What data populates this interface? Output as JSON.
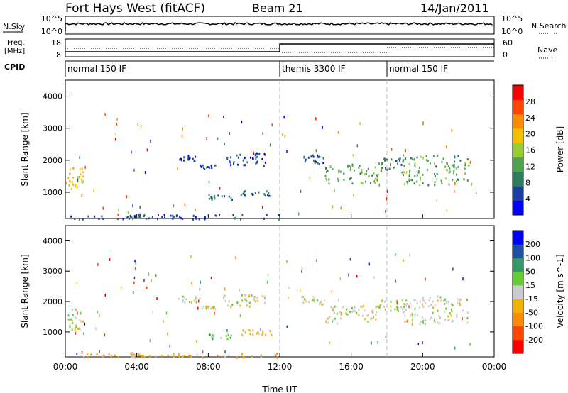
{
  "header": {
    "station": "Fort Hays West (fitACF)",
    "beam": "Beam 21",
    "date": "14/Jan/2011"
  },
  "panels_top": {
    "nsky_label": "N.Sky",
    "nsearch_label": "N.Search",
    "freq_label_line1": "Freq.",
    "freq_label_line2": "[MHz]",
    "nave_label": "Nave",
    "cpid_label": "CPID",
    "nsky_ticks": [
      "10^5",
      "10^0"
    ],
    "nsearch_ticks": [
      "10^5",
      "10^0"
    ],
    "freq_ticks": [
      "18",
      "8"
    ],
    "nave_ticks": [
      "60",
      "0"
    ]
  },
  "cpid_segments": [
    {
      "start": 0,
      "end": 12,
      "label": "normal 150 IF"
    },
    {
      "start": 12,
      "end": 18,
      "label": "themis 3300 IF"
    },
    {
      "start": 18,
      "end": 24,
      "label": "normal 150 IF"
    }
  ],
  "colors": {
    "power": [
      "#0000ff",
      "#1a3fa6",
      "#2e7d5c",
      "#4fa34f",
      "#9acd32",
      "#f2c200",
      "#ff8c00",
      "#ff4500",
      "#ff0000"
    ],
    "velocity": [
      "#ff0000",
      "#ff4500",
      "#ff8c00",
      "#f2b300",
      "#cccccc",
      "#66cc33",
      "#339966",
      "#1f4fa6",
      "#0000ff"
    ],
    "grid": "#bbbbbb"
  },
  "chart_data": [
    {
      "type": "heatmap",
      "name": "power",
      "ylabel": "Slant Range [km]",
      "colorbar_label": "Power [dB]",
      "colorbar_ticks": [
        "28",
        "24",
        "20",
        "16",
        "12",
        "8",
        "4"
      ],
      "ylim": [
        180,
        4500
      ],
      "yticks": [
        "4000",
        "3000",
        "2000",
        "1000"
      ],
      "xlim": [
        0,
        24
      ],
      "blobs": [
        {
          "t0": 0.1,
          "t1": 1.0,
          "r0": 1100,
          "r1": 1800,
          "level": 5
        },
        {
          "t0": 3.6,
          "t1": 4.4,
          "r0": 200,
          "r1": 350,
          "level": 2
        },
        {
          "t0": 6.3,
          "t1": 7.5,
          "r0": 2000,
          "r1": 2200,
          "level": 1
        },
        {
          "t0": 7.5,
          "t1": 8.4,
          "r0": 1750,
          "r1": 1900,
          "level": 1
        },
        {
          "t0": 8.0,
          "t1": 9.3,
          "r0": 800,
          "r1": 950,
          "level": 2
        },
        {
          "t0": 8.8,
          "t1": 11.2,
          "r0": 1850,
          "r1": 2250,
          "level": 1
        },
        {
          "t0": 9.8,
          "t1": 11.5,
          "r0": 900,
          "r1": 1100,
          "level": 2
        },
        {
          "t0": 13.2,
          "t1": 14.5,
          "r0": 1900,
          "r1": 2200,
          "level": 1
        },
        {
          "t0": 14.5,
          "t1": 17.5,
          "r0": 1300,
          "r1": 1900,
          "level": 3
        },
        {
          "t0": 17.5,
          "t1": 18.8,
          "r0": 1700,
          "r1": 2100,
          "level": 2
        },
        {
          "t0": 18.8,
          "t1": 22.6,
          "r0": 1250,
          "r1": 2200,
          "level": 3
        },
        {
          "t0": 0.2,
          "t1": 12.0,
          "r0": 180,
          "r1": 330,
          "level": 1
        }
      ]
    },
    {
      "type": "heatmap",
      "name": "velocity",
      "ylabel": "Slant Range [km]",
      "colorbar_label": "Velocity [m s^-1]",
      "colorbar_ticks": [
        "200",
        "100",
        "50",
        "15",
        "-15",
        "-50",
        "-100",
        "-200"
      ],
      "ylim": [
        180,
        4500
      ],
      "yticks": [
        "4000",
        "3000",
        "2000",
        "1000"
      ],
      "xlim": [
        0,
        24
      ],
      "xticks": [
        "00:00",
        "04:00",
        "08:00",
        "12:00",
        "16:00",
        "20:00",
        "00:00"
      ],
      "xlabel": "Time UT",
      "blobs": [
        {
          "t0": 0.1,
          "t1": 1.0,
          "r0": 1100,
          "r1": 1800,
          "level": 4
        },
        {
          "t0": 3.6,
          "t1": 4.4,
          "r0": 200,
          "r1": 350,
          "level": 3
        },
        {
          "t0": 6.3,
          "t1": 7.5,
          "r0": 2000,
          "r1": 2200,
          "level": 4
        },
        {
          "t0": 7.5,
          "t1": 8.4,
          "r0": 1750,
          "r1": 1900,
          "level": 4
        },
        {
          "t0": 8.0,
          "t1": 9.3,
          "r0": 800,
          "r1": 950,
          "level": 5
        },
        {
          "t0": 8.8,
          "t1": 11.2,
          "r0": 1850,
          "r1": 2250,
          "level": 4
        },
        {
          "t0": 9.8,
          "t1": 11.5,
          "r0": 900,
          "r1": 1100,
          "level": 3
        },
        {
          "t0": 13.2,
          "t1": 14.5,
          "r0": 1900,
          "r1": 2200,
          "level": 4
        },
        {
          "t0": 14.5,
          "t1": 17.5,
          "r0": 1300,
          "r1": 1900,
          "level": 4
        },
        {
          "t0": 17.5,
          "t1": 18.8,
          "r0": 1700,
          "r1": 2100,
          "level": 4
        },
        {
          "t0": 18.8,
          "t1": 22.6,
          "r0": 1250,
          "r1": 2200,
          "level": 4
        },
        {
          "t0": 0.2,
          "t1": 12.0,
          "r0": 180,
          "r1": 330,
          "level": 3
        }
      ]
    }
  ]
}
